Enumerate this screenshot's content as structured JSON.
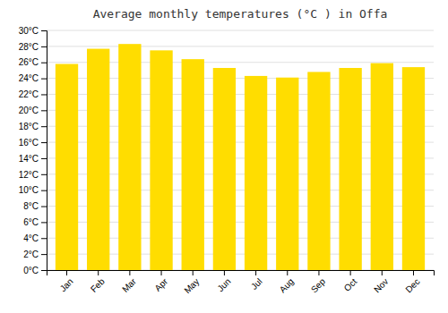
{
  "chart_data": {
    "type": "bar",
    "title": "Average monthly temperatures (°C ) in Offa",
    "categories": [
      "Jan",
      "Feb",
      "Mar",
      "Apr",
      "May",
      "Jun",
      "Jul",
      "Aug",
      "Sep",
      "Oct",
      "Nov",
      "Dec"
    ],
    "values": [
      25.8,
      27.7,
      28.3,
      27.5,
      26.4,
      25.3,
      24.3,
      24.1,
      24.8,
      25.3,
      25.9,
      25.4
    ],
    "color": "#FFDD00",
    "ylim": [
      0,
      30
    ],
    "yticks": [
      {
        "value": 0,
        "label": "0°C"
      },
      {
        "value": 2,
        "label": "2°C"
      },
      {
        "value": 4,
        "label": "4°C"
      },
      {
        "value": 6,
        "label": "6°C"
      },
      {
        "value": 8,
        "label": "8°C"
      },
      {
        "value": 10,
        "label": "10°C"
      },
      {
        "value": 12,
        "label": "12°C"
      },
      {
        "value": 14,
        "label": "14°C"
      },
      {
        "value": 16,
        "label": "16°C"
      },
      {
        "value": 18,
        "label": "18°C"
      },
      {
        "value": 20,
        "label": "20°C"
      },
      {
        "value": 22,
        "label": "22°C"
      },
      {
        "value": 24,
        "label": "24°C"
      },
      {
        "value": 26,
        "label": "26°C"
      },
      {
        "value": 28,
        "label": "28°C"
      },
      {
        "value": 30,
        "label": "30°C"
      }
    ],
    "grid": true
  }
}
